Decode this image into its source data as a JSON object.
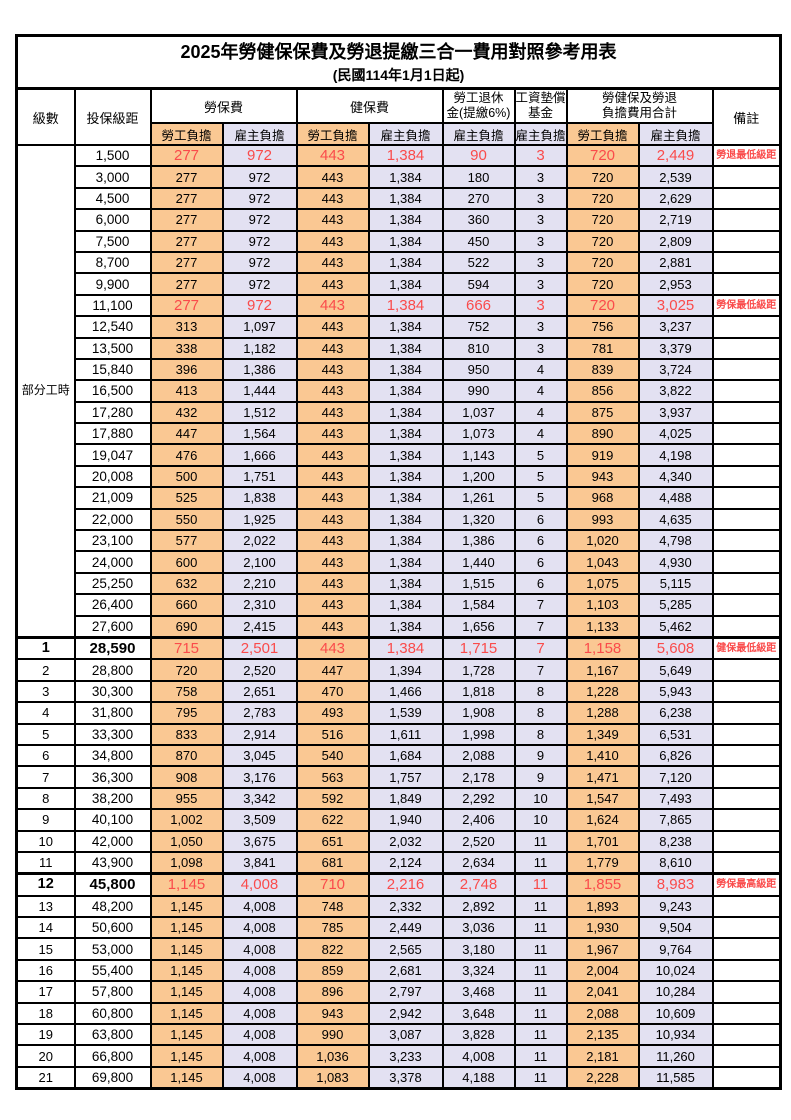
{
  "main": {
    "title": "2025年勞健保保費及勞退提繳三合一費用對照參考用表",
    "subtitle": "(民國114年1月1日起)"
  },
  "colors": {
    "employee_fill": "#FAC893",
    "employer_fill": "#E3E1F2",
    "highlight_text": "#FA4B4B",
    "border": "#000000"
  },
  "table": {
    "header": {
      "level": "級數",
      "bracket": "投保級距",
      "labor_insurance": "勞保費",
      "health_insurance": "健保費",
      "pension_line1": "勞工退休",
      "pension_line2": "金(提繳6%)",
      "wage_fund_line1": "工資墊償",
      "wage_fund_line2": "基金",
      "total_line1": "勞健保及勞退",
      "total_line2": "負擔費用合計",
      "remark": "備註",
      "employee_share": "勞工負擔",
      "employer_share": "雇主負擔"
    },
    "group_label": "部分工時",
    "group_rowspan": 23,
    "column_pattern": [
      "oe",
      "le",
      "oe",
      "le",
      "le",
      "le",
      "oe",
      "le"
    ],
    "rows": [
      {
        "lv": "",
        "b": "1,500",
        "v": [
          "277",
          "972",
          "443",
          "1,384",
          "90",
          "3",
          "720",
          "2,449"
        ],
        "r": "勞退最低級距",
        "hl": true,
        "bold": false
      },
      {
        "lv": "",
        "b": "3,000",
        "v": [
          "277",
          "972",
          "443",
          "1,384",
          "180",
          "3",
          "720",
          "2,539"
        ],
        "r": "",
        "hl": false,
        "bold": false
      },
      {
        "lv": "",
        "b": "4,500",
        "v": [
          "277",
          "972",
          "443",
          "1,384",
          "270",
          "3",
          "720",
          "2,629"
        ],
        "r": "",
        "hl": false,
        "bold": false
      },
      {
        "lv": "",
        "b": "6,000",
        "v": [
          "277",
          "972",
          "443",
          "1,384",
          "360",
          "3",
          "720",
          "2,719"
        ],
        "r": "",
        "hl": false,
        "bold": false
      },
      {
        "lv": "",
        "b": "7,500",
        "v": [
          "277",
          "972",
          "443",
          "1,384",
          "450",
          "3",
          "720",
          "2,809"
        ],
        "r": "",
        "hl": false,
        "bold": false
      },
      {
        "lv": "",
        "b": "8,700",
        "v": [
          "277",
          "972",
          "443",
          "1,384",
          "522",
          "3",
          "720",
          "2,881"
        ],
        "r": "",
        "hl": false,
        "bold": false
      },
      {
        "lv": "",
        "b": "9,900",
        "v": [
          "277",
          "972",
          "443",
          "1,384",
          "594",
          "3",
          "720",
          "2,953"
        ],
        "r": "",
        "hl": false,
        "bold": false
      },
      {
        "lv": "",
        "b": "11,100",
        "v": [
          "277",
          "972",
          "443",
          "1,384",
          "666",
          "3",
          "720",
          "3,025"
        ],
        "r": "勞保最低級距",
        "hl": true,
        "bold": false
      },
      {
        "lv": "",
        "b": "12,540",
        "v": [
          "313",
          "1,097",
          "443",
          "1,384",
          "752",
          "3",
          "756",
          "3,237"
        ],
        "r": "",
        "hl": false,
        "bold": false
      },
      {
        "lv": "",
        "b": "13,500",
        "v": [
          "338",
          "1,182",
          "443",
          "1,384",
          "810",
          "3",
          "781",
          "3,379"
        ],
        "r": "",
        "hl": false,
        "bold": false
      },
      {
        "lv": "",
        "b": "15,840",
        "v": [
          "396",
          "1,386",
          "443",
          "1,384",
          "950",
          "4",
          "839",
          "3,724"
        ],
        "r": "",
        "hl": false,
        "bold": false
      },
      {
        "lv": "",
        "b": "16,500",
        "v": [
          "413",
          "1,444",
          "443",
          "1,384",
          "990",
          "4",
          "856",
          "3,822"
        ],
        "r": "",
        "hl": false,
        "bold": false
      },
      {
        "lv": "",
        "b": "17,280",
        "v": [
          "432",
          "1,512",
          "443",
          "1,384",
          "1,037",
          "4",
          "875",
          "3,937"
        ],
        "r": "",
        "hl": false,
        "bold": false
      },
      {
        "lv": "",
        "b": "17,880",
        "v": [
          "447",
          "1,564",
          "443",
          "1,384",
          "1,073",
          "4",
          "890",
          "4,025"
        ],
        "r": "",
        "hl": false,
        "bold": false
      },
      {
        "lv": "",
        "b": "19,047",
        "v": [
          "476",
          "1,666",
          "443",
          "1,384",
          "1,143",
          "5",
          "919",
          "4,198"
        ],
        "r": "",
        "hl": false,
        "bold": false
      },
      {
        "lv": "",
        "b": "20,008",
        "v": [
          "500",
          "1,751",
          "443",
          "1,384",
          "1,200",
          "5",
          "943",
          "4,340"
        ],
        "r": "",
        "hl": false,
        "bold": false
      },
      {
        "lv": "",
        "b": "21,009",
        "v": [
          "525",
          "1,838",
          "443",
          "1,384",
          "1,261",
          "5",
          "968",
          "4,488"
        ],
        "r": "",
        "hl": false,
        "bold": false
      },
      {
        "lv": "",
        "b": "22,000",
        "v": [
          "550",
          "1,925",
          "443",
          "1,384",
          "1,320",
          "6",
          "993",
          "4,635"
        ],
        "r": "",
        "hl": false,
        "bold": false
      },
      {
        "lv": "",
        "b": "23,100",
        "v": [
          "577",
          "2,022",
          "443",
          "1,384",
          "1,386",
          "6",
          "1,020",
          "4,798"
        ],
        "r": "",
        "hl": false,
        "bold": false
      },
      {
        "lv": "",
        "b": "24,000",
        "v": [
          "600",
          "2,100",
          "443",
          "1,384",
          "1,440",
          "6",
          "1,043",
          "4,930"
        ],
        "r": "",
        "hl": false,
        "bold": false
      },
      {
        "lv": "",
        "b": "25,250",
        "v": [
          "632",
          "2,210",
          "443",
          "1,384",
          "1,515",
          "6",
          "1,075",
          "5,115"
        ],
        "r": "",
        "hl": false,
        "bold": false
      },
      {
        "lv": "",
        "b": "26,400",
        "v": [
          "660",
          "2,310",
          "443",
          "1,384",
          "1,584",
          "7",
          "1,103",
          "5,285"
        ],
        "r": "",
        "hl": false,
        "bold": false
      },
      {
        "lv": "",
        "b": "27,600",
        "v": [
          "690",
          "2,415",
          "443",
          "1,384",
          "1,656",
          "7",
          "1,133",
          "5,462"
        ],
        "r": "",
        "hl": false,
        "bold": false
      },
      {
        "lv": "1",
        "b": "28,590",
        "v": [
          "715",
          "2,501",
          "443",
          "1,384",
          "1,715",
          "7",
          "1,158",
          "5,608"
        ],
        "r": "健保最低級距",
        "hl": true,
        "bold": true
      },
      {
        "lv": "2",
        "b": "28,800",
        "v": [
          "720",
          "2,520",
          "447",
          "1,394",
          "1,728",
          "7",
          "1,167",
          "5,649"
        ],
        "r": "",
        "hl": false,
        "bold": false
      },
      {
        "lv": "3",
        "b": "30,300",
        "v": [
          "758",
          "2,651",
          "470",
          "1,466",
          "1,818",
          "8",
          "1,228",
          "5,943"
        ],
        "r": "",
        "hl": false,
        "bold": false
      },
      {
        "lv": "4",
        "b": "31,800",
        "v": [
          "795",
          "2,783",
          "493",
          "1,539",
          "1,908",
          "8",
          "1,288",
          "6,238"
        ],
        "r": "",
        "hl": false,
        "bold": false
      },
      {
        "lv": "5",
        "b": "33,300",
        "v": [
          "833",
          "2,914",
          "516",
          "1,611",
          "1,998",
          "8",
          "1,349",
          "6,531"
        ],
        "r": "",
        "hl": false,
        "bold": false
      },
      {
        "lv": "6",
        "b": "34,800",
        "v": [
          "870",
          "3,045",
          "540",
          "1,684",
          "2,088",
          "9",
          "1,410",
          "6,826"
        ],
        "r": "",
        "hl": false,
        "bold": false
      },
      {
        "lv": "7",
        "b": "36,300",
        "v": [
          "908",
          "3,176",
          "563",
          "1,757",
          "2,178",
          "9",
          "1,471",
          "7,120"
        ],
        "r": "",
        "hl": false,
        "bold": false
      },
      {
        "lv": "8",
        "b": "38,200",
        "v": [
          "955",
          "3,342",
          "592",
          "1,849",
          "2,292",
          "10",
          "1,547",
          "7,493"
        ],
        "r": "",
        "hl": false,
        "bold": false
      },
      {
        "lv": "9",
        "b": "40,100",
        "v": [
          "1,002",
          "3,509",
          "622",
          "1,940",
          "2,406",
          "10",
          "1,624",
          "7,865"
        ],
        "r": "",
        "hl": false,
        "bold": false
      },
      {
        "lv": "10",
        "b": "42,000",
        "v": [
          "1,050",
          "3,675",
          "651",
          "2,032",
          "2,520",
          "11",
          "1,701",
          "8,238"
        ],
        "r": "",
        "hl": false,
        "bold": false
      },
      {
        "lv": "11",
        "b": "43,900",
        "v": [
          "1,098",
          "3,841",
          "681",
          "2,124",
          "2,634",
          "11",
          "1,779",
          "8,610"
        ],
        "r": "",
        "hl": false,
        "bold": false
      },
      {
        "lv": "12",
        "b": "45,800",
        "v": [
          "1,145",
          "4,008",
          "710",
          "2,216",
          "2,748",
          "11",
          "1,855",
          "8,983"
        ],
        "r": "勞保最高級距",
        "hl": true,
        "bold": true
      },
      {
        "lv": "13",
        "b": "48,200",
        "v": [
          "1,145",
          "4,008",
          "748",
          "2,332",
          "2,892",
          "11",
          "1,893",
          "9,243"
        ],
        "r": "",
        "hl": false,
        "bold": false
      },
      {
        "lv": "14",
        "b": "50,600",
        "v": [
          "1,145",
          "4,008",
          "785",
          "2,449",
          "3,036",
          "11",
          "1,930",
          "9,504"
        ],
        "r": "",
        "hl": false,
        "bold": false
      },
      {
        "lv": "15",
        "b": "53,000",
        "v": [
          "1,145",
          "4,008",
          "822",
          "2,565",
          "3,180",
          "11",
          "1,967",
          "9,764"
        ],
        "r": "",
        "hl": false,
        "bold": false
      },
      {
        "lv": "16",
        "b": "55,400",
        "v": [
          "1,145",
          "4,008",
          "859",
          "2,681",
          "3,324",
          "11",
          "2,004",
          "10,024"
        ],
        "r": "",
        "hl": false,
        "bold": false
      },
      {
        "lv": "17",
        "b": "57,800",
        "v": [
          "1,145",
          "4,008",
          "896",
          "2,797",
          "3,468",
          "11",
          "2,041",
          "10,284"
        ],
        "r": "",
        "hl": false,
        "bold": false
      },
      {
        "lv": "18",
        "b": "60,800",
        "v": [
          "1,145",
          "4,008",
          "943",
          "2,942",
          "3,648",
          "11",
          "2,088",
          "10,609"
        ],
        "r": "",
        "hl": false,
        "bold": false
      },
      {
        "lv": "19",
        "b": "63,800",
        "v": [
          "1,145",
          "4,008",
          "990",
          "3,087",
          "3,828",
          "11",
          "2,135",
          "10,934"
        ],
        "r": "",
        "hl": false,
        "bold": false
      },
      {
        "lv": "20",
        "b": "66,800",
        "v": [
          "1,145",
          "4,008",
          "1,036",
          "3,233",
          "4,008",
          "11",
          "2,181",
          "11,260"
        ],
        "r": "",
        "hl": false,
        "bold": false
      },
      {
        "lv": "21",
        "b": "69,800",
        "v": [
          "1,145",
          "4,008",
          "1,083",
          "3,378",
          "4,188",
          "11",
          "2,228",
          "11,585"
        ],
        "r": "",
        "hl": false,
        "bold": false
      }
    ]
  }
}
